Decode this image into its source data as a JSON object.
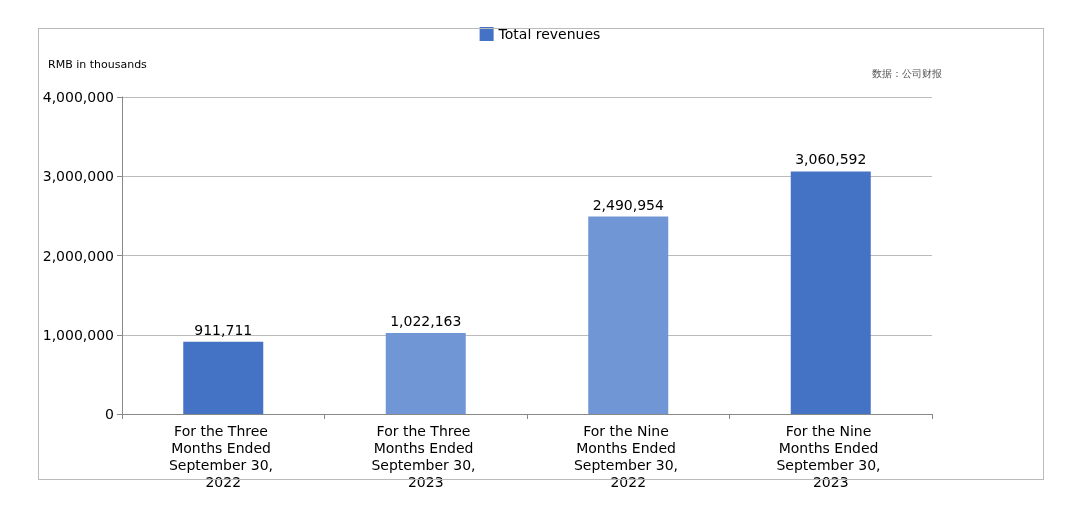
{
  "chart_data": {
    "type": "bar",
    "ylabel": "RMB in thousands",
    "categories": [
      "For the Three Months Ended September 30, 2022",
      "For the Three Months Ended September 30, 2023",
      "For the Nine Months Ended September 30, 2022",
      "For the Nine Months Ended September 30, 2023"
    ],
    "series": [
      {
        "name": "Total revenues",
        "color": "#4472c4",
        "colors": [
          "#4472c4",
          "#7096d6",
          "#7096d6",
          "#4472c4"
        ],
        "values": [
          911711,
          1022163,
          2490954,
          3060592
        ],
        "value_labels": [
          "911,711",
          "1,022,163",
          "2,490,954",
          "3,060,592"
        ]
      }
    ],
    "ylim": [
      0,
      4000000
    ],
    "yticks": [
      0,
      {
        "value": 1000000,
        "label": "1,000,000"
      },
      {
        "value": 2000000,
        "label": "2,000,000"
      },
      {
        "value": 3000000,
        "label": "3,000,000"
      },
      {
        "value": 4000000,
        "label": "4,000,000"
      }
    ],
    "grid": "y",
    "legend": "top",
    "annotations": [
      "数据：公司财报"
    ]
  }
}
